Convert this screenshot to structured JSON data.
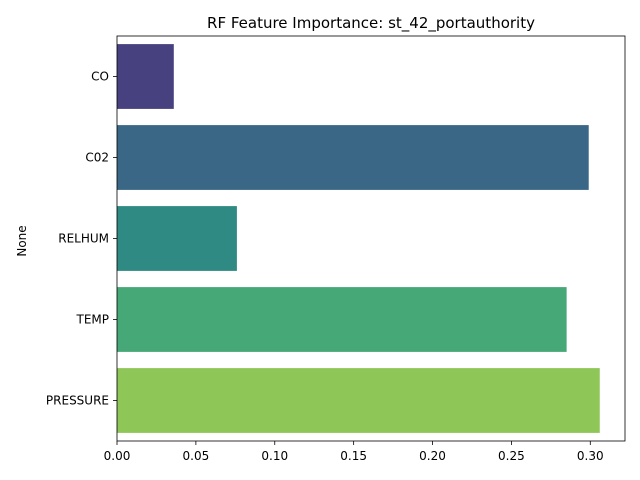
{
  "chart_data": {
    "type": "bar",
    "orientation": "horizontal",
    "title": "RF Feature Importance: st_42_portauthority",
    "xlabel": "",
    "ylabel": "None",
    "categories": [
      "CO",
      "C02",
      "RELHUM",
      "TEMP",
      "PRESSURE"
    ],
    "values": [
      0.036,
      0.299,
      0.076,
      0.285,
      0.306
    ],
    "colors": [
      "#48417f",
      "#3b6786",
      "#2e8a82",
      "#46a877",
      "#8fc658"
    ],
    "xlim": [
      0,
      0.322
    ],
    "xticks": [
      0.0,
      0.05,
      0.1,
      0.15,
      0.2,
      0.25,
      0.3
    ],
    "xtick_labels": [
      "0.00",
      "0.05",
      "0.10",
      "0.15",
      "0.20",
      "0.25",
      "0.30"
    ],
    "grid": false,
    "legend": "none"
  }
}
